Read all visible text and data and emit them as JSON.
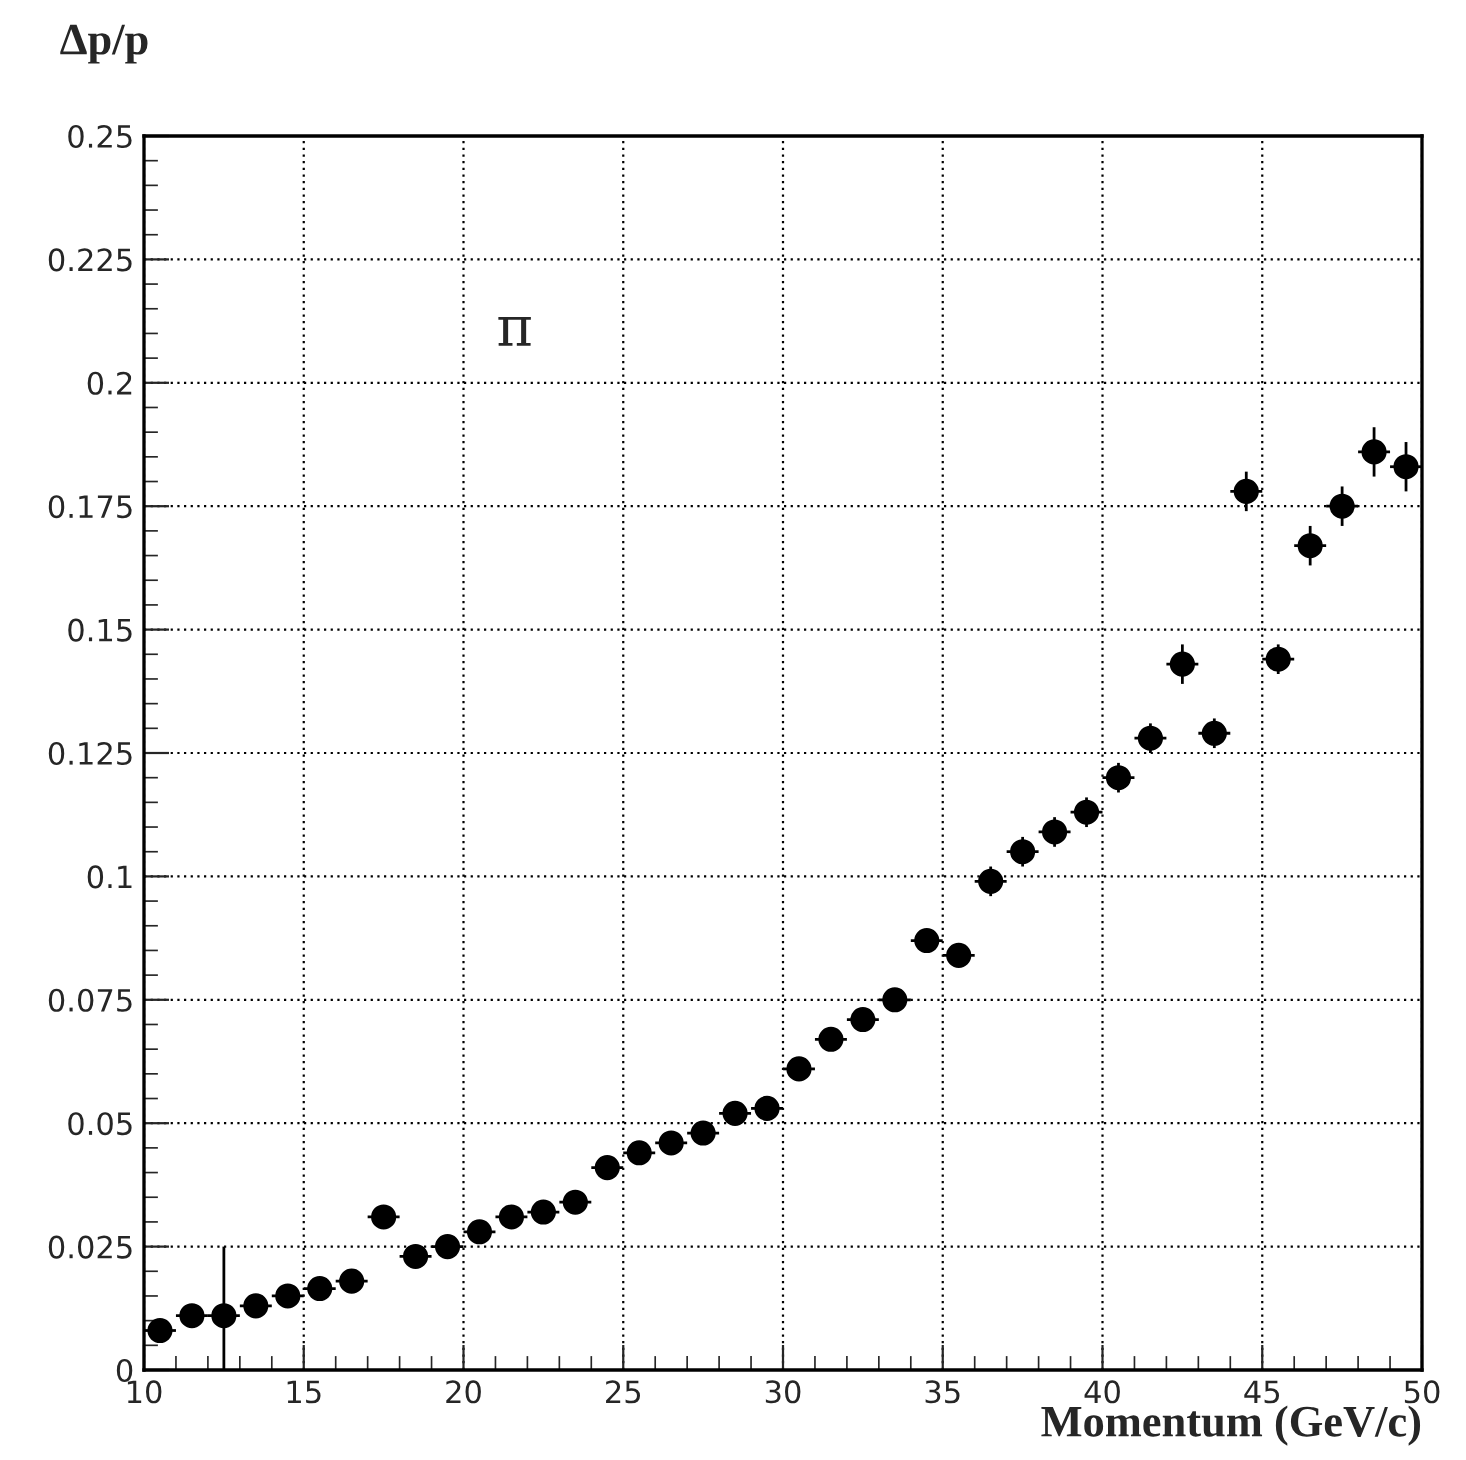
{
  "chart_data": {
    "type": "scatter",
    "ylabel": "Δp/p",
    "xlabel": "Momentum (GeV/c)",
    "annotations": [
      "π"
    ],
    "x": [
      10.5,
      11.5,
      12.5,
      13.5,
      14.5,
      15.5,
      16.5,
      17.5,
      18.5,
      19.5,
      20.5,
      21.5,
      22.5,
      23.5,
      24.5,
      25.5,
      26.5,
      27.5,
      28.5,
      29.5,
      30.5,
      31.5,
      32.5,
      33.5,
      34.5,
      35.5,
      36.5,
      37.5,
      38.5,
      39.5,
      40.5,
      41.5,
      42.5,
      43.5,
      44.5,
      45.5,
      46.5,
      47.5,
      48.5,
      49.5
    ],
    "values": [
      0.008,
      0.011,
      0.011,
      0.013,
      0.015,
      0.0165,
      0.018,
      0.031,
      0.023,
      0.025,
      0.028,
      0.031,
      0.032,
      0.034,
      0.041,
      0.044,
      0.046,
      0.048,
      0.052,
      0.053,
      0.061,
      0.067,
      0.071,
      0.075,
      0.087,
      0.084,
      0.099,
      0.105,
      0.109,
      0.113,
      0.12,
      0.128,
      0.143,
      0.129,
      0.178,
      0.144,
      0.167,
      0.175,
      0.186,
      0.183
    ],
    "errors": [
      null,
      null,
      [
        0,
        0.025
      ],
      null,
      null,
      null,
      null,
      null,
      null,
      null,
      null,
      null,
      null,
      null,
      null,
      null,
      null,
      null,
      null,
      null,
      0.002,
      0.002,
      0.002,
      0.002,
      0.002,
      0.002,
      0.003,
      0.003,
      0.003,
      0.003,
      0.003,
      0.003,
      0.004,
      0.003,
      0.004,
      0.003,
      0.004,
      0.004,
      0.005,
      0.005
    ],
    "xerrors": [
      0.5,
      0.5,
      0.5,
      0.5,
      0.5,
      0.5,
      0.5,
      0.5,
      0.5,
      0.5,
      0.5,
      0.5,
      0.5,
      0.5,
      0.5,
      0.5,
      0.5,
      0.5,
      0.5,
      0.5,
      0.5,
      0.5,
      0.5,
      0.5,
      0.5,
      0.5,
      0.5,
      0.5,
      0.5,
      0.5,
      0.5,
      0.5,
      0.5,
      0.5,
      0.5,
      0.5,
      0.5,
      0.5,
      0.5,
      0.5
    ],
    "color": "#000000",
    "marker": "circle",
    "grid": true,
    "xlim": [
      10,
      50
    ],
    "xticks": [
      10,
      15,
      20,
      25,
      30,
      35,
      40,
      45,
      50
    ],
    "ylim": [
      0,
      0.25
    ],
    "yticks": [
      0,
      0.025,
      0.05,
      0.075,
      0.1,
      0.125,
      0.15,
      0.175,
      0.2,
      0.225,
      0.25
    ]
  }
}
